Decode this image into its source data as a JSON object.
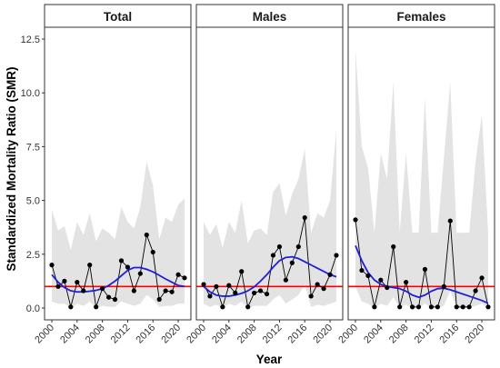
{
  "chart_data": {
    "type": "line",
    "xlabel": "Year",
    "ylabel": "Standardized Mortality Ratio (SMR)",
    "xlim": [
      2000,
      2021
    ],
    "ylim": [
      -0.55,
      13.05
    ],
    "x_ticks": [
      2000,
      2004,
      2008,
      2012,
      2016,
      2020
    ],
    "y_ticks": [
      0.0,
      2.5,
      5.0,
      7.5,
      10.0,
      12.5
    ],
    "y_tick_labels": [
      "0.0",
      "2.5",
      "5.0",
      "7.5",
      "10.0",
      "12.5"
    ],
    "reference_line": {
      "y": 1.0,
      "color": "#ff0000"
    },
    "grid": false,
    "colors": {
      "points": "#000000",
      "line": "#000000",
      "trend": "#1f1fd6",
      "ribbon": "#e3e3e3",
      "reference": "#ff0000"
    },
    "facets": [
      {
        "title": "Total",
        "x": [
          2000,
          2001,
          2002,
          2003,
          2004,
          2005,
          2006,
          2007,
          2008,
          2009,
          2010,
          2011,
          2012,
          2013,
          2014,
          2015,
          2016,
          2017,
          2018,
          2019,
          2020,
          2021
        ],
        "y": [
          2.0,
          1.0,
          1.25,
          0.05,
          1.2,
          0.8,
          2.0,
          0.05,
          0.9,
          0.5,
          0.4,
          2.2,
          1.9,
          0.8,
          1.6,
          3.4,
          2.6,
          0.4,
          0.8,
          0.75,
          1.55,
          1.4
        ],
        "ribbon_upper": [
          4.6,
          3.6,
          3.8,
          2.7,
          4.0,
          3.4,
          4.4,
          3.1,
          3.7,
          3.5,
          3.2,
          4.7,
          4.0,
          3.7,
          4.7,
          6.8,
          5.7,
          3.2,
          4.2,
          4.0,
          4.8,
          5.1
        ],
        "ribbon_lower": [
          0.3,
          0.2,
          0.2,
          0.0,
          0.2,
          0.1,
          0.3,
          0.0,
          0.1,
          0.05,
          0.05,
          0.3,
          0.2,
          0.1,
          0.2,
          0.6,
          0.4,
          0.05,
          0.1,
          0.1,
          0.2,
          0.2
        ],
        "trend": [
          1.55,
          1.2,
          0.95,
          0.8,
          0.75,
          0.75,
          0.78,
          0.82,
          0.9,
          1.05,
          1.25,
          1.5,
          1.75,
          1.88,
          1.88,
          1.8,
          1.68,
          1.52,
          1.35,
          1.2,
          1.05,
          1.0
        ]
      },
      {
        "title": "Males",
        "x": [
          2000,
          2001,
          2002,
          2003,
          2004,
          2005,
          2006,
          2007,
          2008,
          2009,
          2010,
          2011,
          2012,
          2013,
          2014,
          2015,
          2016,
          2017,
          2018,
          2019,
          2020,
          2021
        ],
        "y": [
          1.1,
          0.55,
          1.0,
          0.05,
          1.05,
          0.7,
          1.7,
          0.05,
          0.7,
          0.8,
          0.65,
          2.45,
          2.85,
          1.3,
          2.1,
          2.85,
          4.2,
          0.55,
          1.1,
          0.9,
          1.55,
          2.45
        ],
        "ribbon_upper": [
          4.0,
          3.4,
          3.9,
          2.8,
          4.0,
          3.5,
          5.0,
          3.0,
          3.6,
          3.7,
          3.4,
          5.4,
          5.8,
          4.3,
          5.3,
          6.0,
          7.4,
          3.5,
          4.4,
          4.2,
          5.0,
          8.3
        ],
        "ribbon_lower": [
          0.2,
          0.05,
          0.15,
          0.0,
          0.2,
          0.1,
          0.3,
          0.0,
          0.1,
          0.1,
          0.1,
          0.4,
          0.6,
          0.2,
          0.4,
          0.6,
          1.1,
          0.05,
          0.15,
          0.1,
          0.2,
          0.3
        ],
        "trend": [
          1.0,
          0.75,
          0.6,
          0.55,
          0.55,
          0.6,
          0.68,
          0.8,
          0.98,
          1.25,
          1.55,
          1.9,
          2.2,
          2.35,
          2.38,
          2.3,
          2.15,
          2.0,
          1.85,
          1.7,
          1.55,
          1.45
        ]
      },
      {
        "title": "Females",
        "x": [
          2000,
          2001,
          2002,
          2003,
          2004,
          2005,
          2006,
          2007,
          2008,
          2009,
          2010,
          2011,
          2012,
          2013,
          2014,
          2015,
          2016,
          2017,
          2018,
          2019,
          2020,
          2021
        ],
        "y": [
          4.1,
          1.75,
          1.5,
          0.05,
          1.3,
          0.95,
          2.85,
          0.05,
          1.2,
          0.05,
          0.05,
          1.8,
          0.05,
          0.05,
          1.0,
          4.05,
          0.05,
          0.05,
          0.05,
          0.8,
          1.4,
          0.05
        ],
        "ribbon_upper": [
          12.0,
          7.5,
          6.5,
          3.5,
          7.2,
          6.0,
          10.5,
          3.5,
          7.2,
          3.5,
          3.5,
          9.8,
          3.5,
          3.5,
          7.0,
          10.5,
          3.5,
          3.5,
          3.5,
          6.8,
          9.0,
          3.5
        ],
        "ribbon_lower": [
          1.0,
          0.3,
          0.2,
          0.0,
          0.2,
          0.1,
          0.5,
          0.0,
          0.15,
          0.0,
          0.0,
          0.2,
          0.0,
          0.0,
          0.1,
          0.8,
          0.0,
          0.0,
          0.0,
          0.1,
          0.2,
          0.0
        ],
        "trend": [
          2.9,
          2.2,
          1.65,
          1.3,
          1.1,
          1.0,
          0.95,
          0.9,
          0.78,
          0.6,
          0.5,
          0.6,
          0.78,
          0.9,
          0.92,
          0.85,
          0.75,
          0.65,
          0.55,
          0.45,
          0.35,
          0.22
        ]
      }
    ]
  }
}
